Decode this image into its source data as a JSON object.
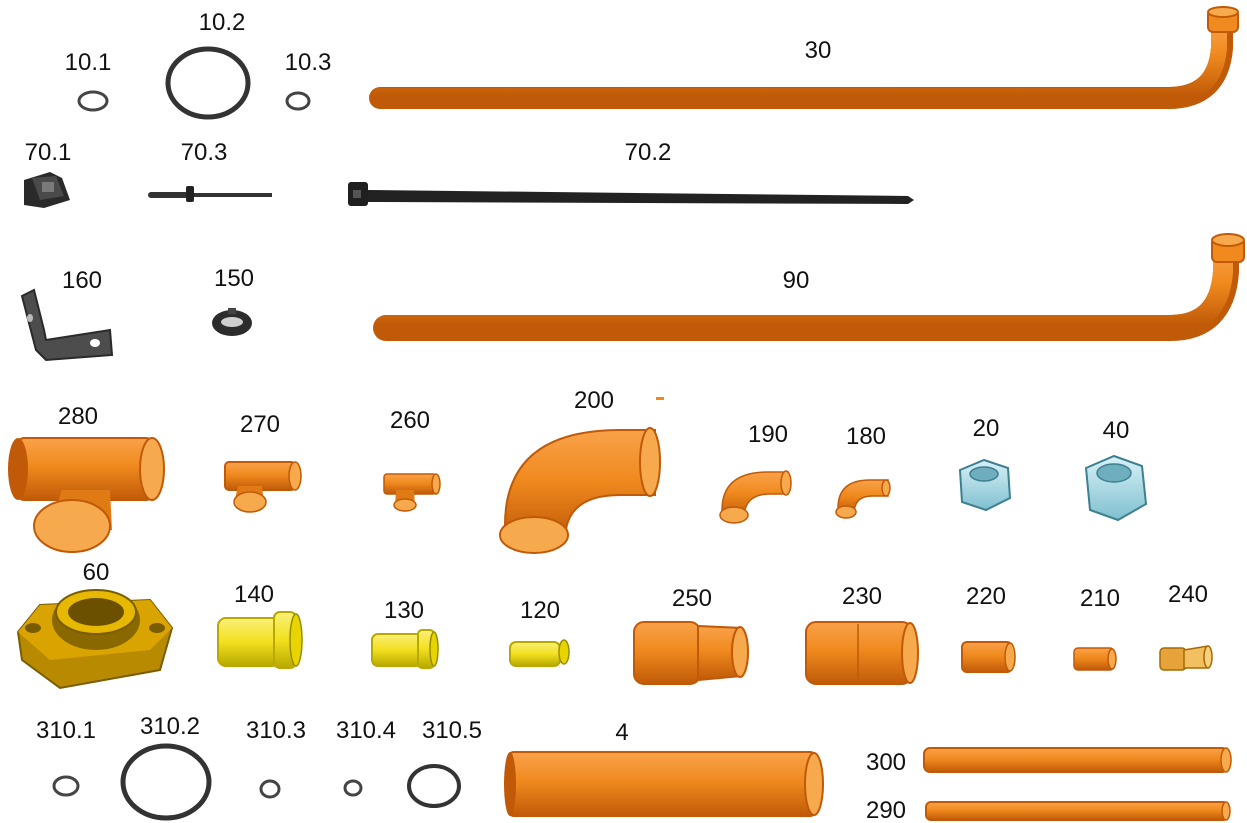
{
  "labels": {
    "p10_1": "10.1",
    "p10_2": "10.2",
    "p10_3": "10.3",
    "p30": "30",
    "p70_1": "70.1",
    "p70_3": "70.3",
    "p70_2": "70.2",
    "p160": "160",
    "p150": "150",
    "p90": "90",
    "p280": "280",
    "p270": "270",
    "p260": "260",
    "p200": "200",
    "p190": "190",
    "p180": "180",
    "p20": "20",
    "p40": "40",
    "p60": "60",
    "p140": "140",
    "p130": "130",
    "p120": "120",
    "p250": "250",
    "p230": "230",
    "p220": "220",
    "p210": "210",
    "p240": "240",
    "p310_1": "310.1",
    "p310_2": "310.2",
    "p310_3": "310.3",
    "p310_4": "310.4",
    "p310_5": "310.5",
    "p4": "4",
    "p300": "300",
    "p290": "290"
  },
  "colors": {
    "copper": "#F08A1E",
    "copper_dark": "#C05A08",
    "copper_inner": "#F7A94E",
    "brass": "#F2E01E",
    "brass_dark": "#B8A800",
    "nut": "#A9DDE8",
    "flange": "#D9A400",
    "steel": "#222222",
    "bracket": "#555555"
  }
}
